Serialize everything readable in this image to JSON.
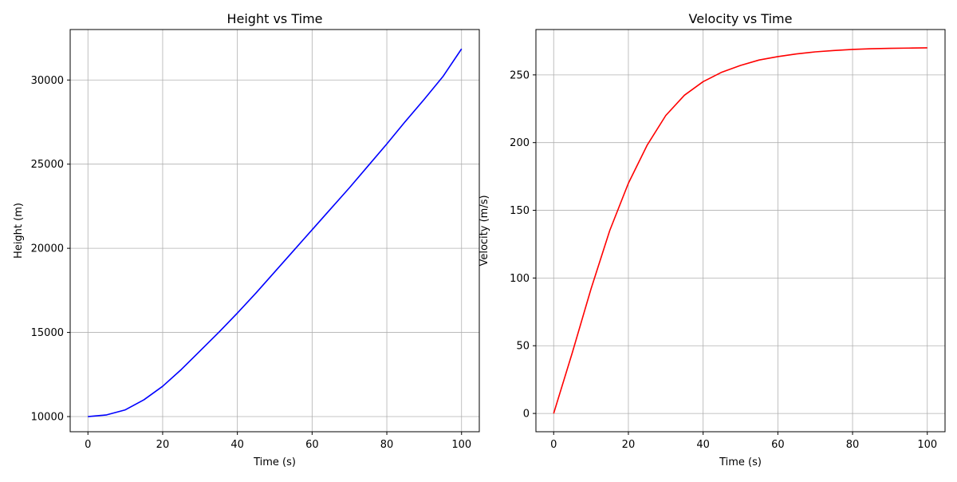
{
  "chart_data": [
    {
      "type": "line",
      "title": "Height vs Time",
      "xlabel": "Time (s)",
      "ylabel": "Height (m)",
      "xlim": [
        -4.75,
        104.75
      ],
      "ylim": [
        9100,
        33000
      ],
      "xticks": [
        0,
        20,
        40,
        60,
        80,
        100
      ],
      "yticks": [
        10000,
        15000,
        20000,
        25000,
        30000
      ],
      "grid": true,
      "series": [
        {
          "color": "#0000ff",
          "x": [
            0,
            5,
            10,
            15,
            20,
            25,
            30,
            35,
            40,
            45,
            50,
            55,
            60,
            65,
            70,
            75,
            80,
            85,
            90,
            95,
            100
          ],
          "y": [
            10000,
            10100,
            10400,
            11000,
            11800,
            12800,
            13900,
            15000,
            16150,
            17350,
            18600,
            19850,
            21100,
            22350,
            23600,
            24900,
            26200,
            27550,
            28850,
            30200,
            31850
          ]
        }
      ]
    },
    {
      "type": "line",
      "title": "Velocity vs Time",
      "xlabel": "Time (s)",
      "ylabel": "Velocity (m/s)",
      "xlim": [
        -4.75,
        104.75
      ],
      "ylim": [
        -13.5,
        283.5
      ],
      "xticks": [
        0,
        20,
        40,
        60,
        80,
        100
      ],
      "yticks": [
        0,
        50,
        100,
        150,
        200,
        250
      ],
      "grid": true,
      "series": [
        {
          "color": "#ff0000",
          "x": [
            0,
            5,
            10,
            15,
            20,
            25,
            30,
            35,
            40,
            45,
            50,
            55,
            60,
            65,
            70,
            75,
            80,
            85,
            90,
            95,
            100
          ],
          "y": [
            0,
            45,
            92,
            135,
            170,
            198,
            220,
            235,
            245,
            252,
            257,
            261,
            263.5,
            265.5,
            267,
            268,
            268.8,
            269.3,
            269.6,
            269.8,
            270
          ]
        }
      ]
    }
  ]
}
